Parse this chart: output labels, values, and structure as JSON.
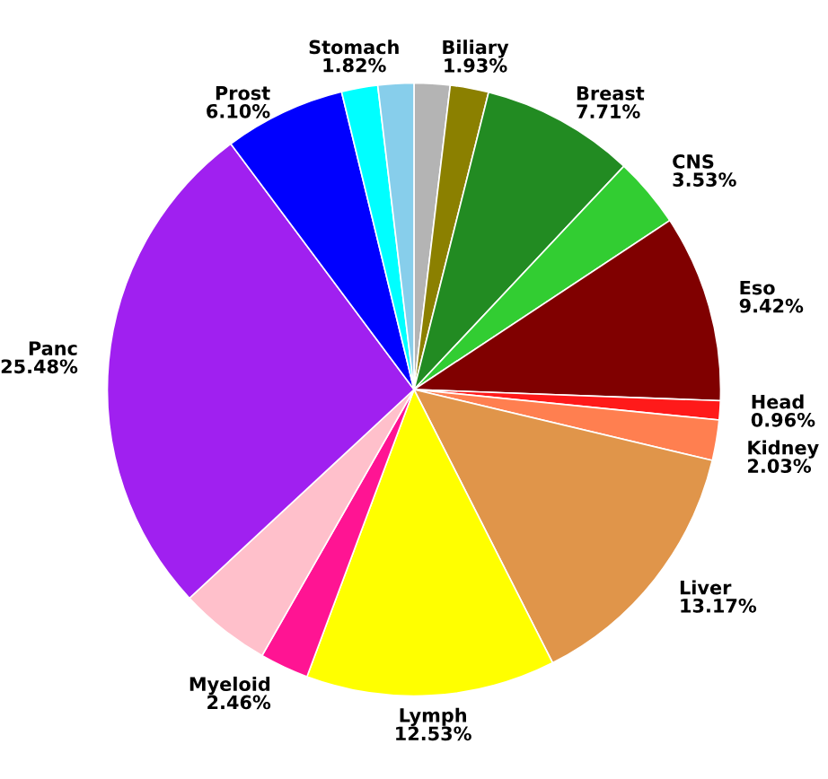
{
  "chart_data": {
    "type": "pie",
    "categories": [
      null,
      "Biliary",
      "Breast",
      "CNS",
      "Eso",
      "Head",
      "Kidney",
      "Liver",
      "Lymph",
      "Myeloid",
      null,
      "Panc",
      "Prost",
      "Stomach",
      null
    ],
    "values": [
      1.8,
      1.93,
      7.71,
      3.53,
      9.42,
      0.96,
      2.03,
      13.17,
      12.53,
      2.46,
      4.6,
      25.48,
      6.1,
      1.82,
      1.8
    ],
    "value_labels": [
      null,
      "1.93%",
      "7.71%",
      "3.53%",
      "9.42%",
      "0.96%",
      "2.03%",
      "13.17%",
      "12.53%",
      "2.46%",
      null,
      "25.48%",
      "6.10%",
      "1.82%",
      null
    ],
    "colors": [
      "#b4b4b4",
      "#8b8000",
      "#228b22",
      "#32cd32",
      "#800000",
      "#ff1a1a",
      "#ff7f50",
      "#e0954a",
      "#ffff00",
      "#ff1493",
      "#ffc0cb",
      "#a020f0",
      "#0000ff",
      "#00ffff",
      "#87ceeb"
    ],
    "legend": false
  }
}
